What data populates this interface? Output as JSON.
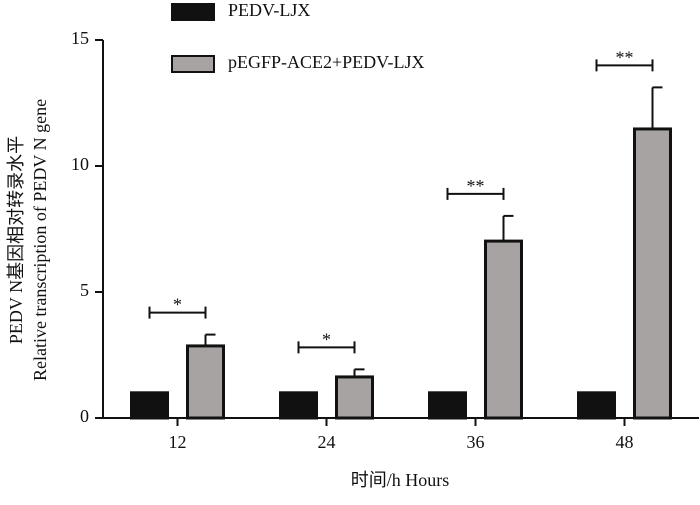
{
  "chart_data": {
    "type": "bar",
    "x_label": "时间/h Hours",
    "y_label": [
      "PEDV N基因相对转录水平",
      "Relative transcription of PEDV N gene"
    ],
    "categories": [
      "12",
      "24",
      "36",
      "48"
    ],
    "series": [
      {
        "name": "PEDV-LJX",
        "color": "#111111",
        "values": [
          1,
          1,
          1,
          1
        ]
      },
      {
        "name": "pEGFP-ACE2+PEDV-LJX",
        "color": "#a8a3a3",
        "values": [
          2.86,
          1.63,
          7.02,
          11.47
        ],
        "errors": [
          0.45,
          0.3,
          1.0,
          1.65
        ]
      }
    ],
    "annotations": [
      "*",
      "*",
      "**",
      "**"
    ],
    "ylim": [
      0,
      15
    ],
    "yticks": [
      0,
      5,
      10,
      15
    ],
    "legend": "top-left"
  }
}
